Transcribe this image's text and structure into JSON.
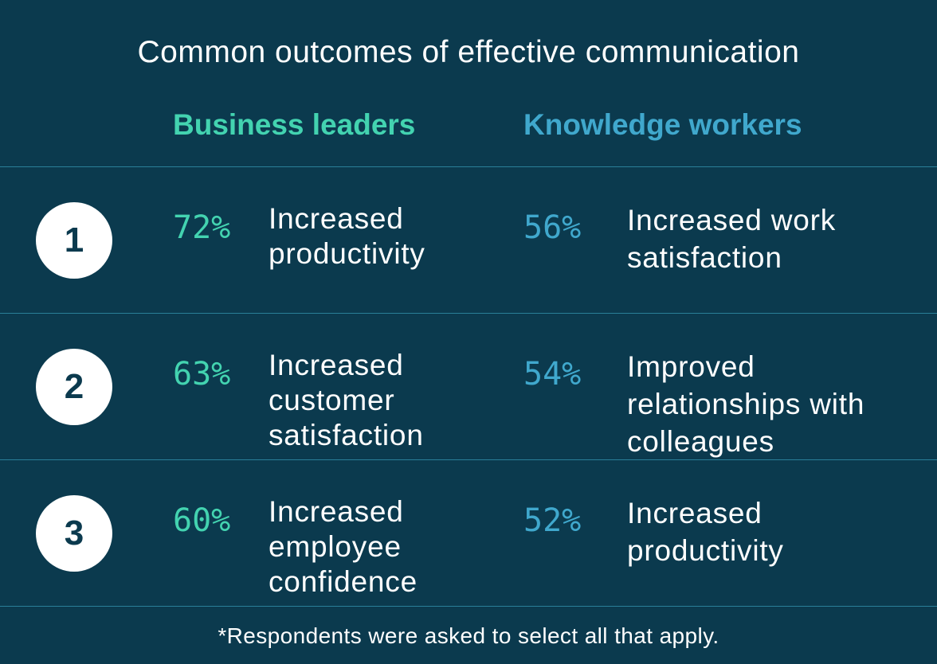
{
  "title": "Common outcomes of effective communication",
  "columns": [
    "Business leaders",
    "Knowledge workers"
  ],
  "rows": [
    {
      "rank": "1",
      "leaders": {
        "percent": "72%",
        "outcome": "Increased productivity"
      },
      "workers": {
        "percent": "56%",
        "outcome": "Increased work satisfaction"
      }
    },
    {
      "rank": "2",
      "leaders": {
        "percent": "63%",
        "outcome": "Increased customer satisfaction"
      },
      "workers": {
        "percent": "54%",
        "outcome": "Improved relationships with colleagues"
      }
    },
    {
      "rank": "3",
      "leaders": {
        "percent": "60%",
        "outcome": "Increased employee confidence"
      },
      "workers": {
        "percent": "52%",
        "outcome": "Increased productivity"
      }
    }
  ],
  "footnote": "*Respondents were asked to select all that apply."
}
